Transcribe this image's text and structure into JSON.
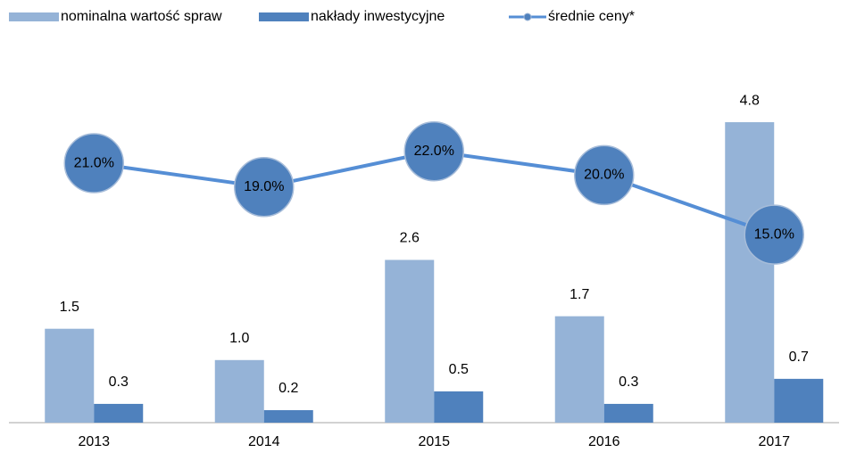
{
  "chart_data": {
    "type": "bar-line",
    "categories": [
      "2013",
      "2014",
      "2015",
      "2016",
      "2017"
    ],
    "series": [
      {
        "name": "nominalna wartość spraw",
        "type": "bar",
        "color": "#95b3d7",
        "values": [
          1.5,
          1.0,
          2.6,
          1.7,
          4.8
        ],
        "value_labels": [
          "1.5",
          "1.0",
          "2.6",
          "1.7",
          "4.8"
        ]
      },
      {
        "name": "nakłady inwestycyjne",
        "type": "bar",
        "color": "#4f81bd",
        "values": [
          0.3,
          0.2,
          0.5,
          0.3,
          0.7
        ],
        "value_labels": [
          "0.3",
          "0.2",
          "0.5",
          "0.3",
          "0.7"
        ]
      },
      {
        "name": "średnie ceny*",
        "type": "line",
        "axis": "y2",
        "color": "#558ed5",
        "values": [
          21,
          19,
          22,
          20,
          15
        ],
        "value_labels": [
          "21.0%",
          "19.0%",
          "22.0%",
          "20.0%",
          "15.0%"
        ]
      }
    ],
    "ylim": [
      0,
      5
    ],
    "y2lim": [
      -0.8,
      25.5
    ],
    "legend": "top",
    "grid": false
  }
}
